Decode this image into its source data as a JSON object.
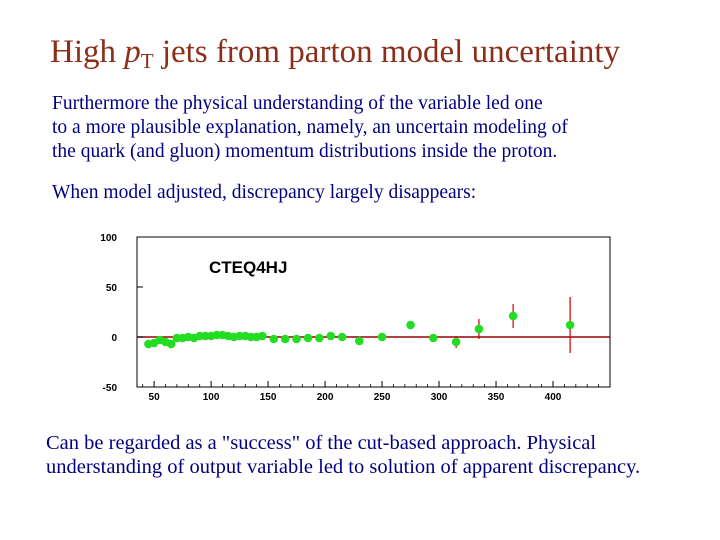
{
  "slide": {
    "title_prefix": "High ",
    "title_var": "p",
    "title_sub": "T",
    "title_suffix": " jets from parton model uncertainty",
    "para1": [
      "Furthermore the physical understanding of the variable led one",
      "to a more plausible explanation, namely, an uncertain modeling of",
      "the quark (and gluon) momentum distributions inside the proton."
    ],
    "para2": "When model adjusted, discrepancy largely disappears:",
    "para3": [
      "Can be regarded as a \"success\" of the cut-based approach.  Physical",
      "understanding of output variable led to solution of apparent discrepancy."
    ],
    "colors": {
      "title": "#8B2E1A",
      "text": "#000080",
      "points": "#22DD22",
      "errors": "#CC0000",
      "reference_line": "#990000"
    }
  },
  "chart_data": {
    "type": "scatter",
    "title": "",
    "annotation": "CTEQ4HJ",
    "xlabel": "",
    "ylabel": "",
    "xlim": [
      35,
      450
    ],
    "ylim": [
      -50,
      100
    ],
    "x_ticks": [
      50,
      100,
      150,
      200,
      250,
      300,
      350,
      400
    ],
    "y_ticks": [
      100,
      50,
      0,
      -50
    ],
    "reference_line_y": 0,
    "grid": false,
    "legend": "none",
    "series": [
      {
        "points": [
          {
            "x": 45,
            "y": -7,
            "err": 2
          },
          {
            "x": 50,
            "y": -6,
            "err": 2
          },
          {
            "x": 55,
            "y": -3,
            "err": 2
          },
          {
            "x": 60,
            "y": -5,
            "err": 2
          },
          {
            "x": 65,
            "y": -7,
            "err": 2
          },
          {
            "x": 70,
            "y": -1,
            "err": 2
          },
          {
            "x": 75,
            "y": -1,
            "err": 2
          },
          {
            "x": 80,
            "y": 0,
            "err": 2
          },
          {
            "x": 85,
            "y": -1,
            "err": 2
          },
          {
            "x": 90,
            "y": 1,
            "err": 2
          },
          {
            "x": 95,
            "y": 1,
            "err": 2
          },
          {
            "x": 100,
            "y": 1,
            "err": 2
          },
          {
            "x": 105,
            "y": 2,
            "err": 2
          },
          {
            "x": 110,
            "y": 2,
            "err": 2
          },
          {
            "x": 115,
            "y": 1,
            "err": 2
          },
          {
            "x": 120,
            "y": 0,
            "err": 2
          },
          {
            "x": 125,
            "y": 1,
            "err": 2
          },
          {
            "x": 130,
            "y": 1,
            "err": 2
          },
          {
            "x": 135,
            "y": 0,
            "err": 2
          },
          {
            "x": 140,
            "y": 0,
            "err": 2
          },
          {
            "x": 145,
            "y": 1,
            "err": 2
          },
          {
            "x": 155,
            "y": -2,
            "err": 2
          },
          {
            "x": 165,
            "y": -2,
            "err": 2
          },
          {
            "x": 175,
            "y": -2,
            "err": 2
          },
          {
            "x": 185,
            "y": -1,
            "err": 2
          },
          {
            "x": 195,
            "y": -1,
            "err": 2
          },
          {
            "x": 205,
            "y": 1,
            "err": 2
          },
          {
            "x": 215,
            "y": 0,
            "err": 2
          },
          {
            "x": 230,
            "y": -4,
            "err": 3
          },
          {
            "x": 250,
            "y": 0,
            "err": 3
          },
          {
            "x": 275,
            "y": 12,
            "err": 3
          },
          {
            "x": 295,
            "y": -1,
            "err": 4
          },
          {
            "x": 315,
            "y": -5,
            "err": 6
          },
          {
            "x": 335,
            "y": 8,
            "err": 10
          },
          {
            "x": 365,
            "y": 21,
            "err": 12
          },
          {
            "x": 415,
            "y": 12,
            "err": 28
          }
        ]
      }
    ]
  }
}
